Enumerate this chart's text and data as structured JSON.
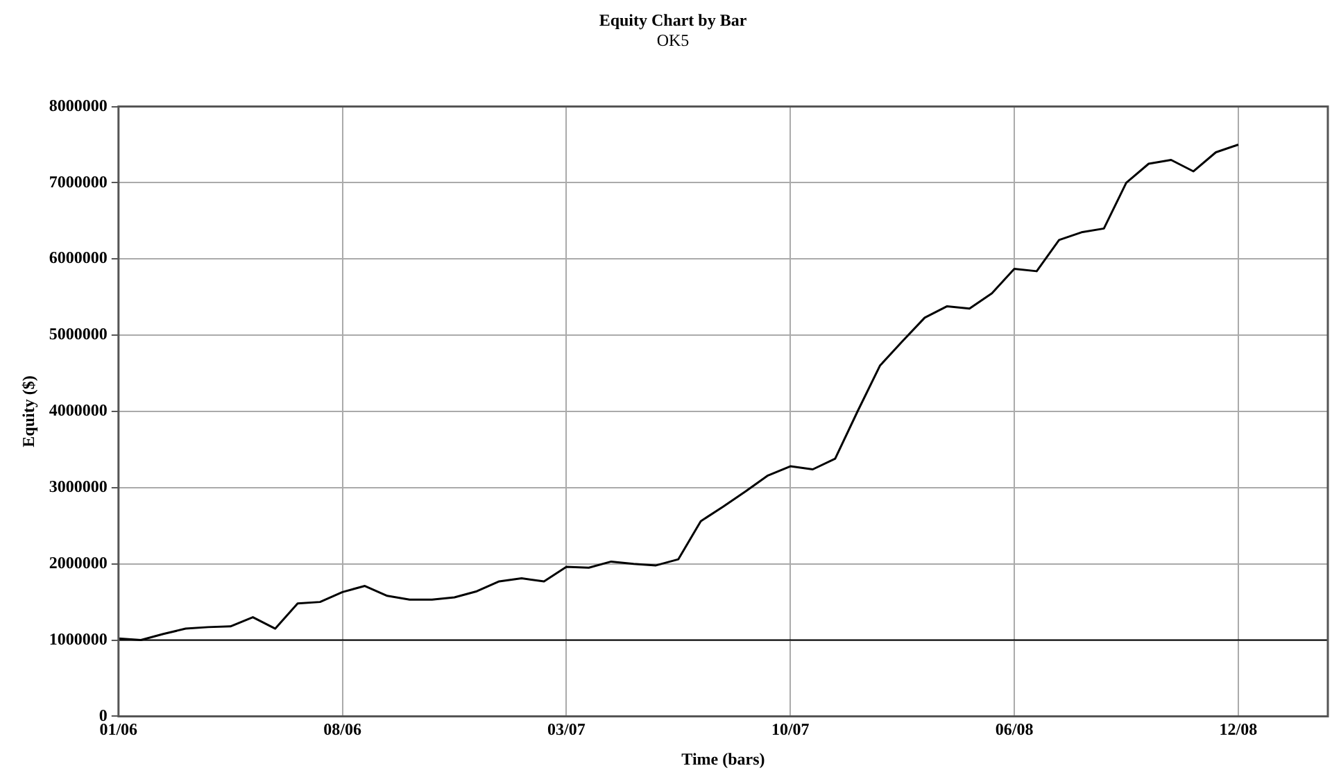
{
  "chart_data": {
    "type": "line",
    "title": "Equity Chart by Bar",
    "subtitle": "OK5",
    "xlabel": "Time (bars)",
    "ylabel": "Equity ($)",
    "categories": [
      "01/06",
      null,
      null,
      null,
      null,
      null,
      null,
      null,
      null,
      null,
      "08/06",
      null,
      null,
      null,
      null,
      null,
      null,
      null,
      null,
      null,
      "03/07",
      null,
      null,
      null,
      null,
      null,
      null,
      null,
      null,
      null,
      "10/07",
      null,
      null,
      null,
      null,
      null,
      null,
      null,
      null,
      null,
      "06/08",
      null,
      null,
      null,
      null,
      null,
      null,
      null,
      null,
      null,
      "12/08",
      null,
      null,
      null,
      null
    ],
    "series": [
      {
        "color": "#000000",
        "values": [
          1020000,
          1000000,
          1080000,
          1150000,
          1170000,
          1180000,
          1300000,
          1150000,
          1480000,
          1500000,
          1630000,
          1710000,
          1580000,
          1530000,
          1530000,
          1560000,
          1640000,
          1770000,
          1810000,
          1770000,
          1960000,
          1950000,
          2030000,
          2000000,
          1980000,
          2060000,
          2560000,
          2750000,
          2950000,
          3160000,
          3280000,
          3240000,
          3380000,
          4000000,
          4600000,
          4920000,
          5230000,
          5380000,
          5350000,
          5550000,
          5870000,
          5840000,
          6250000,
          6350000,
          6400000,
          7000000,
          7250000,
          7300000,
          7150000,
          7400000,
          7500000,
          null,
          null,
          null,
          null
        ]
      }
    ],
    "ylim": [
      0,
      8000000
    ],
    "yticks": [
      0,
      1000000,
      2000000,
      3000000,
      4000000,
      5000000,
      6000000,
      7000000,
      8000000
    ],
    "ref_lines": [
      {
        "axis": "y",
        "value": 1000000,
        "color": "#000000",
        "line_style": "solid"
      }
    ],
    "grid": true,
    "legend": false,
    "marker": "none",
    "line_style": "solid"
  }
}
